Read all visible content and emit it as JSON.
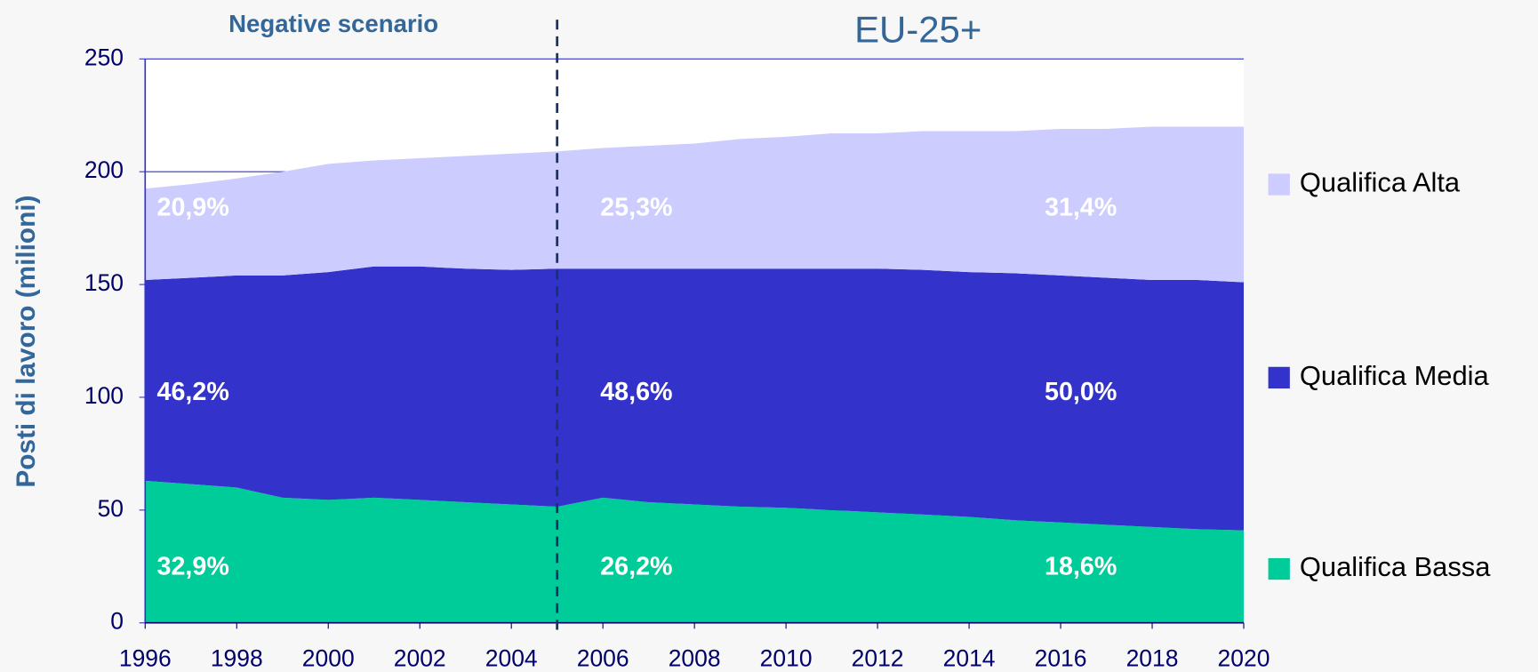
{
  "chart_data": {
    "type": "stacked_area",
    "title": "EU-25+",
    "subtitle": "Negative scenario",
    "y_label": "Posti di lavoro (milioni)",
    "x": [
      1996,
      1997,
      1998,
      1999,
      2000,
      2001,
      2002,
      2003,
      2004,
      2005,
      2006,
      2007,
      2008,
      2009,
      2010,
      2011,
      2012,
      2013,
      2014,
      2015,
      2016,
      2017,
      2018,
      2019,
      2020
    ],
    "xlim": [
      1996,
      2020
    ],
    "xticks": [
      1996,
      1998,
      2000,
      2002,
      2004,
      2006,
      2008,
      2010,
      2012,
      2014,
      2016,
      2018,
      2020
    ],
    "ylim": [
      0,
      250
    ],
    "yticks": [
      0,
      50,
      100,
      150,
      200,
      250
    ],
    "grid": true,
    "vline": 2005,
    "series": [
      {
        "name": "Qualifica Bassa",
        "color": "#00cc99",
        "values": [
          63,
          61.5,
          60,
          55.5,
          54.5,
          55.5,
          54.5,
          53.5,
          52.5,
          51.5,
          55.5,
          53.5,
          52.5,
          51.5,
          51,
          50,
          49,
          48,
          47,
          45.5,
          44.5,
          43.5,
          42.5,
          41.5,
          41
        ],
        "percent_labels": [
          "32,9%",
          "26,2%",
          "18,6%"
        ]
      },
      {
        "name": "Qualifica Media",
        "color": "#3333cc",
        "values": [
          89,
          91.5,
          94,
          98.5,
          101,
          102.5,
          103.5,
          103.5,
          104,
          105.5,
          101.5,
          103.5,
          104.5,
          105.5,
          106,
          107,
          108,
          108.5,
          108.5,
          109.5,
          109.5,
          109.5,
          109.5,
          110.5,
          110
        ],
        "percent_labels": [
          "46,2%",
          "48,6%",
          "50,0%"
        ]
      },
      {
        "name": "Qualifica Alta",
        "color": "#ccccff",
        "values": [
          40.5,
          41.5,
          43,
          46,
          48,
          47,
          48,
          50,
          51.5,
          52,
          53.5,
          54.5,
          55.5,
          57.5,
          58.5,
          60,
          60,
          61.5,
          62.5,
          63,
          65,
          66,
          68,
          68,
          69
        ],
        "percent_labels": [
          "20,9%",
          "25,3%",
          "31,4%"
        ]
      }
    ]
  }
}
